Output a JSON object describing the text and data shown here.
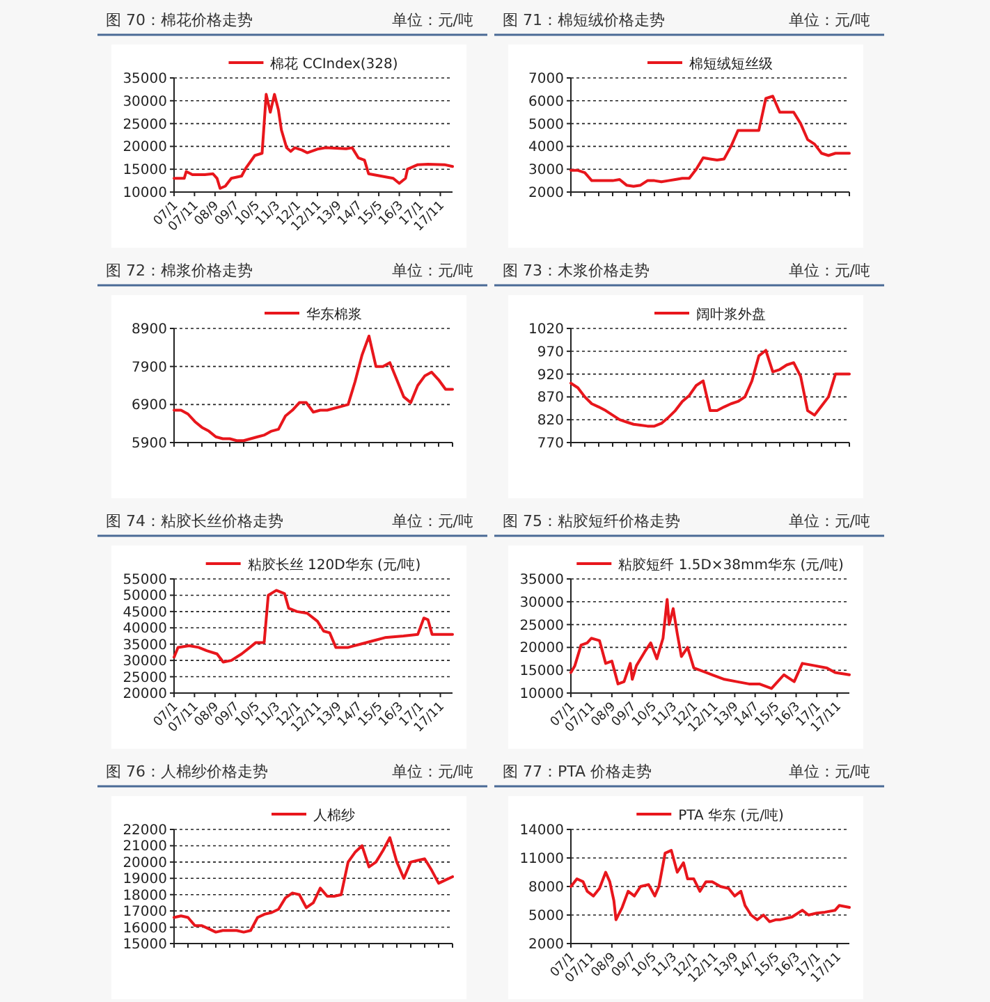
{
  "chart_data": [
    {
      "type": "line",
      "title": "图 70：棉花价格走势",
      "annotations": [
        "单位：元/吨"
      ],
      "legend": "top",
      "grid": "y",
      "x": [
        "2007-01",
        "2007-06",
        "2007-07",
        "2007-10",
        "2008-04",
        "2008-08",
        "2008-10",
        "2008-11-15",
        "2009-02",
        "2009-05",
        "2009-10",
        "2009-12",
        "2010-04-15",
        "2010-08",
        "2010-10",
        "2010-12",
        "2011-02",
        "2011-04",
        "2011-05-15",
        "2011-08",
        "2011-10",
        "2011-12",
        "2012-03-15",
        "2012-06",
        "2012-11",
        "2013-03",
        "2014-01",
        "2014-04",
        "2014-07",
        "2014-10",
        "2014-12",
        "2015-06",
        "2015-12",
        "2016-03",
        "2016-06",
        "2016-07",
        "2016-12",
        "2017-05",
        "2018-01",
        "2018-05"
      ],
      "xlim": [
        "2007-01",
        "2018-05"
      ],
      "xticks": [
        {
          "value": "2007-01",
          "label": "07/1"
        },
        {
          "value": "2007-11",
          "label": "07/11"
        },
        {
          "value": "2008-09",
          "label": "08/9"
        },
        {
          "value": "2009-07",
          "label": "09/7"
        },
        {
          "value": "2010-05",
          "label": "10/5"
        },
        {
          "value": "2011-03",
          "label": "11/3"
        },
        {
          "value": "2012-01",
          "label": "12/1"
        },
        {
          "value": "2012-11",
          "label": "12/11"
        },
        {
          "value": "2013-09",
          "label": "13/9"
        },
        {
          "value": "2014-07",
          "label": "14/7"
        },
        {
          "value": "2015-05",
          "label": "15/5"
        },
        {
          "value": "2016-03",
          "label": "16/3"
        },
        {
          "value": "2017-01",
          "label": "17/1"
        },
        {
          "value": "2017-11",
          "label": "17/11"
        }
      ],
      "ylim": [
        10000,
        35000
      ],
      "yticks": [
        10000,
        15000,
        20000,
        25000,
        30000,
        35000
      ],
      "series": [
        {
          "name": "棉花 CCIndex(328)",
          "color": "#e8161c",
          "values": [
            13000,
            13000,
            14500,
            13800,
            13800,
            14000,
            13000,
            10800,
            11300,
            13000,
            13500,
            15200,
            18000,
            18500,
            31400,
            27500,
            31400,
            28000,
            23600,
            19700,
            18900,
            19700,
            19200,
            18600,
            19400,
            19700,
            19500,
            19700,
            17500,
            17000,
            14000,
            13500,
            13000,
            11900,
            13000,
            15000,
            16000,
            16100,
            16000,
            15600
          ]
        }
      ]
    },
    {
      "type": "line",
      "title": "图 71：棉短绒价格走势",
      "annotations": [
        "单位：元/吨"
      ],
      "legend": "top",
      "grid": "y",
      "tick_labels": "y",
      "categories": [
        null,
        null,
        null,
        null,
        null,
        null,
        null,
        null,
        null,
        null,
        null,
        null,
        null,
        null,
        null,
        null,
        null,
        null,
        null,
        null,
        null,
        null,
        null,
        null,
        null,
        null,
        null,
        null,
        null,
        null,
        null,
        null,
        null,
        null,
        null,
        null,
        null,
        null,
        null,
        null,
        null
      ],
      "ylim": [
        2000,
        7000
      ],
      "yticks": [
        2000,
        3000,
        4000,
        5000,
        6000,
        7000
      ],
      "series": [
        {
          "name": "棉短绒短丝级",
          "color": "#e8161c",
          "values": [
            2950,
            2950,
            2850,
            2500,
            2500,
            2500,
            2500,
            2550,
            2300,
            2250,
            2300,
            2500,
            2500,
            2450,
            2500,
            2550,
            2600,
            2600,
            3000,
            3500,
            3450,
            3400,
            3450,
            4000,
            4700,
            4700,
            4700,
            4700,
            6100,
            6200,
            5500,
            5500,
            5500,
            5000,
            4300,
            4100,
            3700,
            3600,
            3700,
            3700,
            3700
          ]
        }
      ]
    },
    {
      "type": "line",
      "title": "图 72：棉浆价格走势",
      "annotations": [
        "单位：元/吨"
      ],
      "legend": "top",
      "grid": "y",
      "tick_labels": "y",
      "categories": [
        null,
        null,
        null,
        null,
        null,
        null,
        null,
        null,
        null,
        null,
        null,
        null,
        null,
        null,
        null,
        null,
        null,
        null,
        null,
        null,
        null,
        null,
        null,
        null,
        null,
        null,
        null,
        null,
        null,
        null,
        null,
        null,
        null,
        null,
        null,
        null,
        null,
        null,
        null,
        null,
        null
      ],
      "ylim": [
        5900,
        8900
      ],
      "yticks": [
        5900,
        6900,
        7900,
        8900
      ],
      "series": [
        {
          "name": "华东棉浆",
          "color": "#e8161c",
          "values": [
            6750,
            6750,
            6650,
            6450,
            6300,
            6200,
            6050,
            6000,
            6000,
            5950,
            5950,
            6000,
            6050,
            6100,
            6200,
            6250,
            6600,
            6750,
            6950,
            6950,
            6700,
            6750,
            6750,
            6800,
            6850,
            6900,
            7500,
            8200,
            8700,
            7900,
            7900,
            8000,
            7550,
            7100,
            6950,
            7400,
            7650,
            7750,
            7550,
            7300,
            7300
          ]
        }
      ]
    },
    {
      "type": "line",
      "title": "图 73：木浆价格走势",
      "annotations": [
        "单位：元/吨"
      ],
      "legend": "top",
      "grid": "y",
      "tick_labels": "y",
      "categories": [
        null,
        null,
        null,
        null,
        null,
        null,
        null,
        null,
        null,
        null,
        null,
        null,
        null,
        null,
        null,
        null,
        null,
        null,
        null,
        null,
        null,
        null,
        null,
        null,
        null,
        null,
        null,
        null,
        null,
        null,
        null,
        null,
        null,
        null,
        null,
        null,
        null,
        null,
        null,
        null,
        null
      ],
      "ylim": [
        770,
        1020
      ],
      "yticks": [
        770,
        820,
        870,
        920,
        970,
        1020
      ],
      "series": [
        {
          "name": "阔叶浆外盘",
          "color": "#e8161c",
          "values": [
            900,
            890,
            870,
            855,
            848,
            840,
            830,
            820,
            815,
            810,
            808,
            806,
            806,
            812,
            825,
            840,
            860,
            873,
            895,
            905,
            840,
            840,
            848,
            855,
            860,
            870,
            905,
            960,
            972,
            925,
            930,
            940,
            945,
            915,
            840,
            830,
            850,
            870,
            920,
            920,
            920
          ]
        }
      ]
    },
    {
      "type": "line",
      "title": "图 74：粘胶长丝价格走势",
      "annotations": [
        "单位：元/吨"
      ],
      "legend": "top",
      "grid": "y",
      "x": [
        "2007-01",
        "2007-03",
        "2007-08-13",
        "2008-01",
        "2008-05",
        "2008-10",
        "2009-01",
        "2009-05",
        "2009-10",
        "2010-02",
        "2010-05",
        "2010-09",
        "2010-11",
        "2011-03",
        "2011-07",
        "2011-09",
        "2012-01",
        "2012-06",
        "2012-11",
        "2013-02",
        "2013-05",
        "2013-08",
        "2014-02",
        "2014-08",
        "2015-02",
        "2015-08",
        "2016-05",
        "2016-12",
        "2017-03",
        "2017-05",
        "2017-07",
        "2018-05"
      ],
      "xlim": [
        "2007-01",
        "2018-05"
      ],
      "xticks": [
        {
          "value": "2007-01",
          "label": "07/1"
        },
        {
          "value": "2007-11",
          "label": "07/11"
        },
        {
          "value": "2008-09",
          "label": "08/9"
        },
        {
          "value": "2009-07",
          "label": "09/7"
        },
        {
          "value": "2010-05",
          "label": "10/5"
        },
        {
          "value": "2011-03",
          "label": "11/3"
        },
        {
          "value": "2012-01",
          "label": "12/1"
        },
        {
          "value": "2012-11",
          "label": "12/11"
        },
        {
          "value": "2013-09",
          "label": "13/9"
        },
        {
          "value": "2014-07",
          "label": "14/7"
        },
        {
          "value": "2015-05",
          "label": "15/5"
        },
        {
          "value": "2016-03",
          "label": "16/3"
        },
        {
          "value": "2017-01",
          "label": "17/1"
        },
        {
          "value": "2017-11",
          "label": "17/11"
        }
      ],
      "ylim": [
        20000,
        55000
      ],
      "yticks": [
        20000,
        25000,
        30000,
        35000,
        40000,
        45000,
        50000,
        55000
      ],
      "series": [
        {
          "name": "粘胶长丝 120D华东 (元/吨)",
          "color": "#e8161c",
          "values": [
            31000,
            34000,
            34500,
            34000,
            33000,
            32000,
            29500,
            30000,
            32000,
            34000,
            35500,
            35500,
            50000,
            51500,
            50500,
            46000,
            45000,
            44500,
            42000,
            39000,
            38500,
            34000,
            34000,
            35000,
            36000,
            37000,
            37500,
            38000,
            43000,
            42500,
            38000,
            38000
          ]
        }
      ]
    },
    {
      "type": "line",
      "title": "图 75：粘胶短纤价格走势",
      "annotations": [
        "单位：元/吨"
      ],
      "legend": "top",
      "grid": "y",
      "x": [
        "2007-01",
        "2007-03",
        "2007-06",
        "2007-09",
        "2007-11",
        "2008-03",
        "2008-06",
        "2008-09",
        "2008-12",
        "2009-03",
        "2009-06",
        "2009-07",
        "2009-09",
        "2010-01",
        "2010-04",
        "2010-07",
        "2010-10",
        "2010-12",
        "2011-01",
        "2011-03",
        "2011-05",
        "2011-07",
        "2011-10",
        "2012-01",
        "2012-04",
        "2012-10",
        "2013-04",
        "2013-10",
        "2014-04",
        "2014-09",
        "2015-03",
        "2015-09",
        "2016-02",
        "2016-06",
        "2016-12",
        "2017-06",
        "2017-10",
        "2018-05"
      ],
      "xlim": [
        "2007-01",
        "2018-05"
      ],
      "xticks": [
        {
          "value": "2007-01",
          "label": "07/1"
        },
        {
          "value": "2007-11",
          "label": "07/11"
        },
        {
          "value": "2008-09",
          "label": "08/9"
        },
        {
          "value": "2009-07",
          "label": "09/7"
        },
        {
          "value": "2010-05",
          "label": "10/5"
        },
        {
          "value": "2011-03",
          "label": "11/3"
        },
        {
          "value": "2012-01",
          "label": "12/1"
        },
        {
          "value": "2012-11",
          "label": "12/11"
        },
        {
          "value": "2013-09",
          "label": "13/9"
        },
        {
          "value": "2014-07",
          "label": "14/7"
        },
        {
          "value": "2015-05",
          "label": "15/5"
        },
        {
          "value": "2016-03",
          "label": "16/3"
        },
        {
          "value": "2017-01",
          "label": "17/1"
        },
        {
          "value": "2017-11",
          "label": "17/11"
        }
      ],
      "ylim": [
        10000,
        35000
      ],
      "yticks": [
        10000,
        15000,
        20000,
        25000,
        30000,
        35000
      ],
      "series": [
        {
          "name": "粘胶短纤 1.5D×38mm华东 (元/吨)",
          "color": "#e8161c",
          "values": [
            14500,
            16000,
            20500,
            21000,
            22000,
            21500,
            16500,
            17000,
            12000,
            12500,
            16500,
            13000,
            16000,
            19000,
            21000,
            17500,
            22000,
            30500,
            25000,
            28500,
            23000,
            18000,
            20000,
            15500,
            15000,
            14000,
            13000,
            12500,
            12000,
            12000,
            11000,
            14000,
            12500,
            16500,
            16000,
            15500,
            14500,
            14000
          ]
        }
      ]
    },
    {
      "type": "line",
      "title": "图 76：人棉纱价格走势",
      "annotations": [
        "单位：元/吨"
      ],
      "legend": "top",
      "grid": "y",
      "tick_labels": "y",
      "categories": [
        null,
        null,
        null,
        null,
        null,
        null,
        null,
        null,
        null,
        null,
        null,
        null,
        null,
        null,
        null,
        null,
        null,
        null,
        null,
        null,
        null,
        null,
        null,
        null,
        null,
        null,
        null,
        null,
        null,
        null,
        null,
        null,
        null,
        null,
        null,
        null,
        null,
        null,
        null,
        null,
        null
      ],
      "ylim": [
        15000,
        22000
      ],
      "yticks": [
        15000,
        16000,
        17000,
        18000,
        19000,
        20000,
        21000,
        22000
      ],
      "series": [
        {
          "name": "人棉纱",
          "color": "#e8161c",
          "values": [
            16600,
            16700,
            16600,
            16100,
            16100,
            15900,
            15700,
            15800,
            15800,
            15800,
            15700,
            15800,
            16600,
            16800,
            16900,
            17100,
            17800,
            18100,
            18000,
            17200,
            17500,
            18400,
            17900,
            17900,
            18000,
            20000,
            20600,
            21000,
            19700,
            20000,
            20700,
            21500,
            20000,
            19000,
            20000,
            20100,
            20200,
            19500,
            18700,
            18900,
            19100
          ]
        }
      ]
    },
    {
      "type": "line",
      "title": "图 77：PTA 价格走势",
      "annotations": [
        "单位：元/吨"
      ],
      "legend": "top",
      "grid": "y",
      "x": [
        "2007-01",
        "2007-04",
        "2007-07",
        "2007-09",
        "2007-12",
        "2008-03",
        "2008-06",
        "2008-08",
        "2008-10",
        "2008-11",
        "2009-02",
        "2009-05",
        "2009-08",
        "2009-11",
        "2010-03",
        "2010-06",
        "2010-08",
        "2010-11",
        "2011-02",
        "2011-05",
        "2011-08",
        "2011-10",
        "2012-01",
        "2012-04",
        "2012-07",
        "2012-10",
        "2013-02",
        "2013-06",
        "2013-09",
        "2013-12",
        "2014-02",
        "2014-05",
        "2014-08",
        "2014-11",
        "2015-02",
        "2015-05",
        "2015-07",
        "2016-01",
        "2016-06",
        "2016-09",
        "2017-01",
        "2017-05",
        "2017-10",
        "2017-12",
        "2018-05"
      ],
      "xlim": [
        "2007-01",
        "2018-05"
      ],
      "xticks": [
        {
          "value": "2007-01",
          "label": "07/1"
        },
        {
          "value": "2007-11",
          "label": "07/11"
        },
        {
          "value": "2008-09",
          "label": "08/9"
        },
        {
          "value": "2009-07",
          "label": "09/7"
        },
        {
          "value": "2010-05",
          "label": "10/5"
        },
        {
          "value": "2011-03",
          "label": "11/3"
        },
        {
          "value": "2012-01",
          "label": "12/1"
        },
        {
          "value": "2012-11",
          "label": "12/11"
        },
        {
          "value": "2013-09",
          "label": "13/9"
        },
        {
          "value": "2014-07",
          "label": "14/7"
        },
        {
          "value": "2015-05",
          "label": "15/5"
        },
        {
          "value": "2016-03",
          "label": "16/3"
        },
        {
          "value": "2017-01",
          "label": "17/1"
        },
        {
          "value": "2017-11",
          "label": "17/11"
        }
      ],
      "ylim": [
        2000,
        14000
      ],
      "yticks": [
        2000,
        5000,
        8000,
        11000,
        14000
      ],
      "series": [
        {
          "name": "PTA 华东 (元/吨)",
          "color": "#e8161c",
          "values": [
            8000,
            8800,
            8500,
            7500,
            7000,
            7800,
            9500,
            8500,
            6500,
            4500,
            5800,
            7500,
            7000,
            8000,
            8200,
            7000,
            8000,
            11500,
            11800,
            9500,
            10500,
            8800,
            8800,
            7500,
            8500,
            8500,
            8000,
            7800,
            7000,
            7500,
            6000,
            5000,
            4500,
            5000,
            4300,
            4500,
            4500,
            4800,
            5500,
            5000,
            5200,
            5300,
            5500,
            6000,
            5800
          ]
        }
      ]
    }
  ]
}
